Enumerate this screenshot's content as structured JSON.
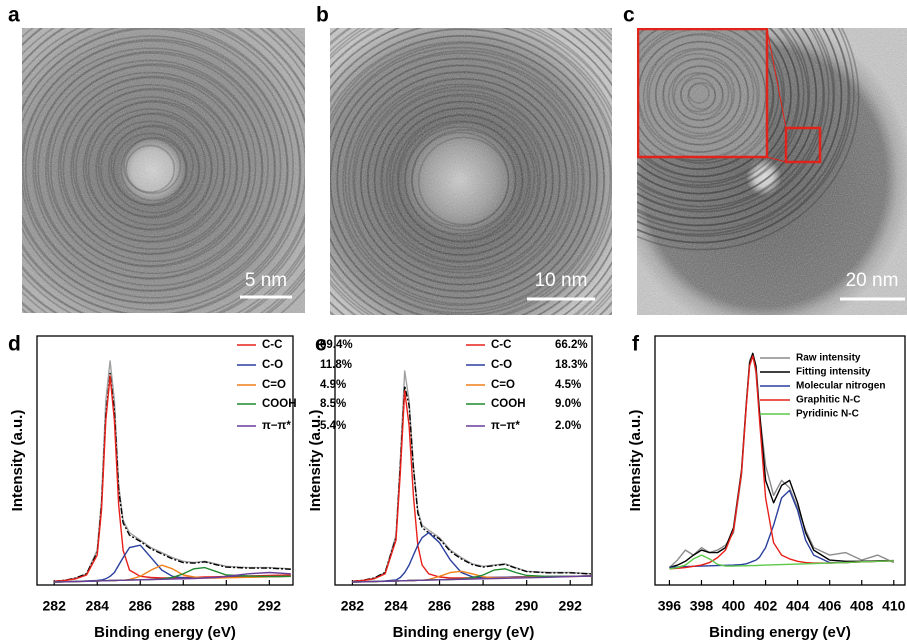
{
  "images": [
    {
      "panel": "a",
      "scale_bar": "5 nm"
    },
    {
      "panel": "b",
      "scale_bar": "10 nm"
    },
    {
      "panel": "c",
      "scale_bar": "20 nm"
    }
  ],
  "chart_data": [
    {
      "type": "line",
      "panel": "d",
      "x_label": "Binding energy (eV)",
      "y_label": "Intensity (a.u.)",
      "xlim": [
        281.2,
        293.1
      ],
      "xticks": [
        282,
        284,
        286,
        288,
        290,
        292
      ],
      "ylim": [
        0,
        100
      ],
      "x": [
        282,
        282.5,
        283,
        283.5,
        284,
        284.2,
        284.4,
        284.6,
        284.8,
        285,
        285.2,
        285.5,
        286,
        286.5,
        287,
        287.5,
        288,
        288.5,
        289,
        289.5,
        290,
        291,
        292,
        293
      ],
      "series": [
        {
          "color": "#a0a0a0",
          "values": [
            1.5,
            1.9,
            2.8,
            4.5,
            14,
            34,
            74,
            90,
            74,
            40,
            26,
            21,
            18,
            15,
            13,
            11,
            9.5,
            9,
            9.5,
            8.5,
            7.5,
            7,
            7,
            6.5
          ]
        },
        {
          "color": "#000000",
          "dash": "6 2 2 2",
          "values": [
            1.5,
            1.9,
            2.8,
            4.5,
            13,
            32,
            68,
            85,
            70,
            38,
            25,
            20,
            17.5,
            14.5,
            12.5,
            10.5,
            9,
            8.8,
            9.3,
            8.2,
            7.2,
            6.8,
            6.8,
            6.3
          ]
        },
        {
          "name": "C-C",
          "share": "69.4%",
          "color": "#e8201a",
          "values": [
            1.5,
            1.8,
            2.5,
            4,
            12,
            30,
            66,
            84,
            66,
            32,
            14,
            6,
            3.5,
            3,
            2.8,
            2.9,
            3,
            3.1,
            3.2,
            3.3,
            3.4,
            3.6,
            3.8,
            4
          ]
        },
        {
          "name": "C-O",
          "share": "11.8%",
          "color": "#2a3f9e",
          "values": [
            1.2,
            1.3,
            1.4,
            1.6,
            1.8,
            2,
            2.5,
            3.5,
            5,
            8,
            11,
            15,
            16,
            11,
            6,
            3.5,
            2.8,
            2.8,
            2.9,
            3,
            3.1,
            3.2,
            3.3,
            3.5
          ]
        },
        {
          "name": "C=O",
          "share": "4.9%",
          "color": "#f07f1a",
          "values": [
            1.2,
            1.3,
            1.4,
            1.5,
            1.6,
            1.7,
            1.7,
            1.8,
            1.8,
            1.9,
            1.9,
            2.2,
            3.5,
            6,
            8,
            6.5,
            4,
            3.2,
            2.8,
            2.8,
            2.9,
            3.1,
            3.3,
            3.5
          ]
        },
        {
          "name": "COOH",
          "share": "8.5%",
          "color": "#1f8a2e",
          "values": [
            1.2,
            1.3,
            1.4,
            1.5,
            1.6,
            1.7,
            1.7,
            1.8,
            1.8,
            1.9,
            1.9,
            2,
            2.1,
            2.2,
            2.4,
            3,
            4.5,
            6.5,
            7,
            5.5,
            4,
            3.6,
            3.4,
            3.5
          ]
        },
        {
          "name": "π−π*",
          "share": "5.4%",
          "color": "#6a3d9a",
          "values": [
            1.2,
            1.3,
            1.4,
            1.5,
            1.6,
            1.7,
            1.7,
            1.8,
            1.8,
            1.9,
            1.9,
            2,
            2.1,
            2.2,
            2.3,
            2.4,
            2.5,
            2.6,
            2.8,
            3,
            3.4,
            4.5,
            5,
            4.5
          ]
        }
      ]
    },
    {
      "type": "line",
      "panel": "e",
      "x_label": "Binding energy (eV)",
      "y_label": "Intensity (a.u.)",
      "xlim": [
        281.2,
        293.0
      ],
      "xticks": [
        282,
        284,
        286,
        288,
        290,
        292
      ],
      "ylim": [
        0,
        100
      ],
      "x": [
        282,
        282.5,
        283,
        283.5,
        284,
        284.2,
        284.4,
        284.6,
        284.8,
        285,
        285.2,
        285.5,
        286,
        286.5,
        287,
        287.5,
        288,
        288.5,
        289,
        289.5,
        290,
        291,
        292,
        293
      ],
      "series": [
        {
          "color": "#a0a0a0",
          "values": [
            1.5,
            1.9,
            2.8,
            5,
            20,
            50,
            86,
            74,
            48,
            30,
            24,
            22,
            19,
            14,
            11,
            8.5,
            7.5,
            8,
            8.5,
            7,
            5.5,
            5,
            5,
            4.5
          ]
        },
        {
          "color": "#000000",
          "dash": "6 2 2 2",
          "values": [
            1.5,
            1.9,
            2.8,
            5,
            19,
            48,
            80,
            72,
            47,
            29,
            23,
            21,
            18.5,
            13.5,
            10.5,
            8.2,
            7.2,
            7.8,
            8.3,
            6.8,
            5.4,
            4.9,
            4.9,
            4.4
          ]
        },
        {
          "name": "C-C",
          "share": "66.2%",
          "color": "#e8201a",
          "values": [
            1.5,
            1.8,
            2.5,
            4.5,
            18,
            45,
            78,
            64,
            36,
            16,
            8,
            4.5,
            3.2,
            2.8,
            2.8,
            2.9,
            3,
            3,
            3.1,
            3.2,
            3.3,
            3.4,
            3.5,
            3.6
          ]
        },
        {
          "name": "C-O",
          "share": "18.3%",
          "color": "#2a3f9e",
          "values": [
            1.2,
            1.3,
            1.4,
            1.6,
            2,
            3,
            5,
            8,
            12,
            16,
            19,
            21,
            17,
            10,
            5,
            3.3,
            3,
            3,
            3.1,
            3.2,
            3.3,
            3.4,
            3.5,
            3.6
          ]
        },
        {
          "name": "C=O",
          "share": "4.5%",
          "color": "#f07f1a",
          "values": [
            1.2,
            1.3,
            1.4,
            1.5,
            1.6,
            1.7,
            1.7,
            1.8,
            1.8,
            1.9,
            1.9,
            2.2,
            3.5,
            5,
            5.5,
            4.5,
            3.3,
            2.9,
            2.9,
            3,
            3.1,
            3.3,
            3.4,
            3.6
          ]
        },
        {
          "name": "COOH",
          "share": "9.0%",
          "color": "#1f8a2e",
          "values": [
            1.2,
            1.3,
            1.4,
            1.5,
            1.6,
            1.7,
            1.7,
            1.8,
            1.8,
            1.9,
            1.9,
            2,
            2.1,
            2.2,
            2.4,
            2.9,
            4,
            6,
            6.5,
            5,
            3.8,
            3.4,
            3.5,
            3.6
          ]
        },
        {
          "name": "π−π*",
          "share": "2.0%",
          "color": "#6a3d9a",
          "values": [
            1.2,
            1.3,
            1.4,
            1.5,
            1.6,
            1.7,
            1.7,
            1.8,
            1.8,
            1.9,
            1.9,
            2,
            2.1,
            2.2,
            2.3,
            2.4,
            2.5,
            2.6,
            2.7,
            2.8,
            2.9,
            3.1,
            3.4,
            3.6
          ]
        }
      ]
    },
    {
      "type": "line",
      "panel": "f",
      "x_label": "Binding energy (eV)",
      "y_label": "Intensity (a.u.)",
      "xlim": [
        395.1,
        410.7
      ],
      "xticks": [
        396,
        398,
        400,
        402,
        404,
        406,
        408,
        410
      ],
      "ylim": [
        0,
        100
      ],
      "x": [
        396,
        396.5,
        397,
        397.5,
        398,
        398.5,
        399,
        399.5,
        400,
        400.5,
        400.8,
        401,
        401.2,
        401.4,
        401.6,
        402,
        402.5,
        403,
        403.5,
        404,
        404.5,
        405,
        406,
        407,
        408,
        409,
        410
      ],
      "series": [
        {
          "name": "Raw intensity",
          "color": "#8c8c8c",
          "values": [
            7,
            10,
            14,
            12,
            15,
            13,
            14,
            16,
            21,
            44,
            72,
            90,
            93,
            85,
            70,
            48,
            36,
            42,
            39,
            31,
            22,
            15,
            12,
            13,
            10,
            12,
            9
          ]
        },
        {
          "name": "Fitting intensity",
          "color": "#000000",
          "values": [
            7,
            8,
            9.5,
            12,
            14,
            13,
            13,
            15,
            23,
            46,
            73,
            89,
            93,
            88,
            71,
            42,
            33,
            40,
            42,
            33,
            21,
            14,
            10,
            9.5,
            9.5,
            9.7,
            9.8
          ]
        },
        {
          "name": "Molecular nitrogen",
          "color": "#2a3f9e",
          "values": [
            7,
            7.2,
            7.4,
            7.5,
            7.6,
            7.7,
            7.8,
            7.9,
            8,
            8.2,
            8.5,
            9,
            9.5,
            10,
            11,
            15,
            24,
            35,
            38,
            30,
            18,
            12,
            9,
            9,
            9.3,
            9.5,
            9.7
          ]
        },
        {
          "name": "Graphitic N-C",
          "color": "#e8201a",
          "values": [
            6.5,
            6.7,
            7,
            7.5,
            8,
            9,
            11,
            14,
            22,
            45,
            72,
            88,
            92,
            86,
            68,
            35,
            17,
            12,
            10.5,
            9.5,
            9,
            8.8,
            8.8,
            9,
            9.3,
            9.5,
            9.7
          ]
        },
        {
          "name": "Pyridinic N-C",
          "color": "#5cc84a",
          "values": [
            6.5,
            7,
            8,
            10.5,
            12,
            10.5,
            8.3,
            7.6,
            7.6,
            7.7,
            7.7,
            7.8,
            7.8,
            7.8,
            7.9,
            8,
            8.1,
            8.2,
            8.3,
            8.4,
            8.5,
            8.6,
            8.8,
            9,
            9.3,
            9.5,
            9.7
          ]
        }
      ]
    }
  ]
}
